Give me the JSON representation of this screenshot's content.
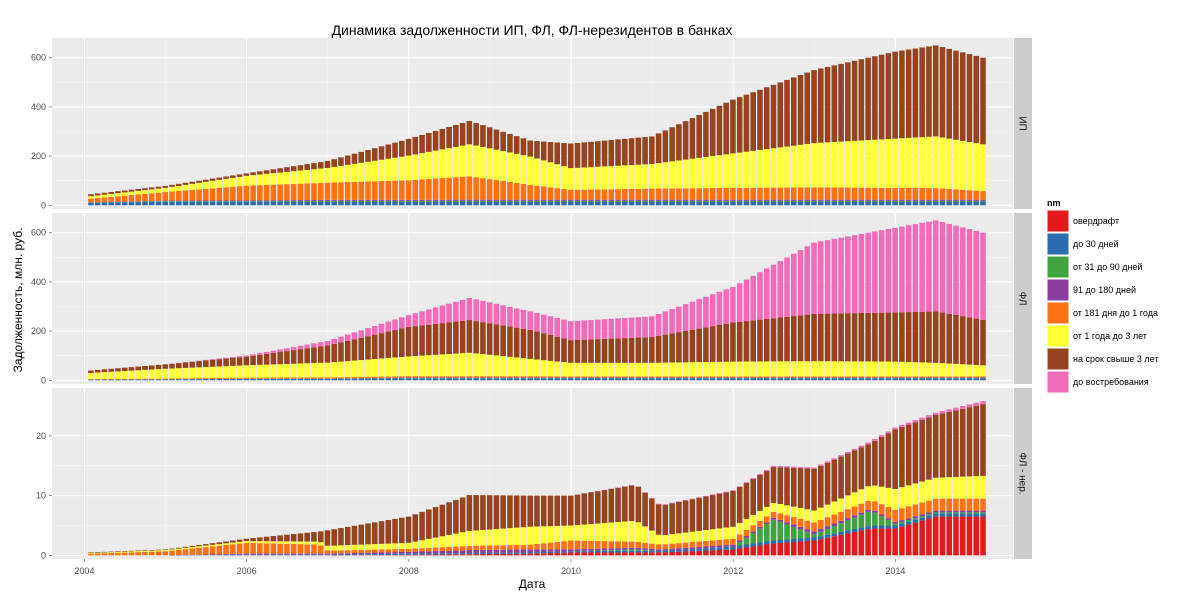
{
  "chart_data": {
    "type": "bar",
    "stacked": true,
    "title": "Динамика задолженности ИП, ФЛ, ФЛ-нерезидентов в банках",
    "xlabel": "Дата",
    "ylabel": "Задолженность, млн. руб.",
    "x_ticks": [
      "2004",
      "2006",
      "2008",
      "2010",
      "2012",
      "2014"
    ],
    "x_range": [
      2003.6,
      2015.45
    ],
    "grid": true,
    "legend": {
      "title": "nm",
      "position": "right",
      "entries": [
        {
          "name": "овердрафт",
          "color": "#e31a1c"
        },
        {
          "name": "до 30 дней",
          "color": "#2b6cb0"
        },
        {
          "name": "от 31 до 90 дней",
          "color": "#3fa33f"
        },
        {
          "name": "91 до 180 дней",
          "color": "#8a3ea0"
        },
        {
          "name": "от 181 дня до 1 года",
          "color": "#ff7214"
        },
        {
          "name": "от 1 года до 3 лет",
          "color": "#ffff33"
        },
        {
          "name": "на срок свыше 3 лет",
          "color": "#95441f"
        },
        {
          "name": "до востребования",
          "color": "#f06bb8"
        }
      ]
    },
    "panels": [
      {
        "strip": "ИП",
        "ylim": [
          -15,
          680
        ],
        "y_ticks": [
          0,
          200,
          400,
          600
        ],
        "anchors": [
          {
            "t": 2004.08,
            "v": [
              0,
              10,
              1,
              1,
              15,
              10,
              8,
              0
            ]
          },
          {
            "t": 2005.0,
            "v": [
              0,
              15,
              2,
              2,
              35,
              17,
              8,
              0
            ]
          },
          {
            "t": 2006.0,
            "v": [
              0,
              15,
              2,
              3,
              60,
              40,
              10,
              0
            ]
          },
          {
            "t": 2007.0,
            "v": [
              0,
              15,
              3,
              4,
              70,
              60,
              28,
              0
            ]
          },
          {
            "t": 2008.0,
            "v": [
              0,
              15,
              3,
              4,
              80,
              100,
              68,
              0
            ]
          },
          {
            "t": 2008.75,
            "v": [
              0,
              15,
              3,
              5,
              95,
              130,
              95,
              0
            ]
          },
          {
            "t": 2009.5,
            "v": [
              0,
              15,
              3,
              5,
              60,
              115,
              65,
              0
            ]
          },
          {
            "t": 2010.0,
            "v": [
              0,
              15,
              3,
              5,
              40,
              88,
              100,
              0
            ]
          },
          {
            "t": 2011.0,
            "v": [
              0,
              15,
              3,
              5,
              45,
              100,
              112,
              0
            ]
          },
          {
            "t": 2012.0,
            "v": [
              0,
              15,
              3,
              5,
              48,
              140,
              219,
              0
            ]
          },
          {
            "t": 2013.0,
            "v": [
              0,
              15,
              3,
              5,
              50,
              180,
              297,
              0
            ]
          },
          {
            "t": 2014.0,
            "v": [
              0,
              15,
              3,
              5,
              48,
              200,
              354,
              0
            ]
          },
          {
            "t": 2014.5,
            "v": [
              0,
              15,
              3,
              5,
              47,
              210,
              370,
              0
            ]
          },
          {
            "t": 2015.08,
            "v": [
              0,
              15,
              3,
              5,
              35,
              190,
              352,
              0
            ]
          }
        ]
      },
      {
        "strip": "ФЛ",
        "ylim": [
          -15,
          680
        ],
        "y_ticks": [
          0,
          200,
          400,
          600
        ],
        "anchors": [
          {
            "t": 2004.08,
            "v": [
              0,
              3,
              0,
              0,
              2,
              25,
              10,
              0
            ]
          },
          {
            "t": 2005.0,
            "v": [
              0,
              4,
              0,
              0,
              3,
              40,
              18,
              0
            ]
          },
          {
            "t": 2006.0,
            "v": [
              0,
              5,
              0,
              1,
              5,
              50,
              35,
              5
            ]
          },
          {
            "t": 2007.0,
            "v": [
              0,
              6,
              0,
              1,
              5,
              60,
              70,
              18
            ]
          },
          {
            "t": 2008.0,
            "v": [
              0,
              8,
              1,
              2,
              6,
              80,
              120,
              48
            ]
          },
          {
            "t": 2008.75,
            "v": [
              0,
              8,
              1,
              2,
              6,
              95,
              133,
              90
            ]
          },
          {
            "t": 2009.5,
            "v": [
              0,
              8,
              1,
              2,
              6,
              70,
              118,
              75
            ]
          },
          {
            "t": 2010.0,
            "v": [
              0,
              8,
              1,
              2,
              5,
              55,
              92,
              77
            ]
          },
          {
            "t": 2011.0,
            "v": [
              0,
              8,
              1,
              2,
              5,
              55,
              105,
              84
            ]
          },
          {
            "t": 2012.0,
            "v": [
              0,
              8,
              1,
              2,
              5,
              60,
              159,
              145
            ]
          },
          {
            "t": 2013.0,
            "v": [
              0,
              8,
              1,
              2,
              5,
              62,
              192,
              290
            ]
          },
          {
            "t": 2014.0,
            "v": [
              0,
              8,
              1,
              2,
              5,
              60,
              200,
              344
            ]
          },
          {
            "t": 2014.5,
            "v": [
              0,
              8,
              1,
              2,
              5,
              55,
              209,
              370
            ]
          },
          {
            "t": 2015.08,
            "v": [
              0,
              8,
              1,
              2,
              5,
              45,
              185,
              354
            ]
          }
        ]
      },
      {
        "strip": "ФЛ - нер.",
        "ylim": [
          -0.6,
          28
        ],
        "y_ticks": [
          0,
          10,
          20
        ],
        "anchors": [
          {
            "t": 2004.08,
            "v": [
              0,
              0,
              0,
              0,
              0.3,
              0.1,
              0.1,
              0
            ]
          },
          {
            "t": 2005.0,
            "v": [
              0,
              0,
              0,
              0,
              0.7,
              0.2,
              0.1,
              0
            ]
          },
          {
            "t": 2006.0,
            "v": [
              0,
              0.1,
              0,
              0.2,
              1.8,
              0.3,
              0.4,
              0
            ]
          },
          {
            "t": 2006.9,
            "v": [
              0,
              0.1,
              0,
              0.2,
              1.5,
              0.5,
              1.7,
              0
            ]
          },
          {
            "t": 2007.0,
            "v": [
              0,
              0.1,
              0,
              0.2,
              0.5,
              0.8,
              2.6,
              0
            ]
          },
          {
            "t": 2008.0,
            "v": [
              0.1,
              0.2,
              0,
              0.3,
              0.5,
              1.0,
              4.4,
              0
            ]
          },
          {
            "t": 2008.75,
            "v": [
              0.2,
              0.2,
              0,
              0.5,
              0.7,
              2.5,
              6.0,
              0
            ]
          },
          {
            "t": 2009.5,
            "v": [
              0.3,
              0.2,
              0,
              0.5,
              0.8,
              3.0,
              5.2,
              0
            ]
          },
          {
            "t": 2010.0,
            "v": [
              0.5,
              0.2,
              0,
              0.3,
              1.5,
              2.5,
              5.0,
              0
            ]
          },
          {
            "t": 2010.8,
            "v": [
              0.5,
              0.3,
              0.2,
              0.3,
              1.0,
              3.5,
              6.0,
              0.1
            ]
          },
          {
            "t": 2011.1,
            "v": [
              0.5,
              0.2,
              0,
              0.3,
              0.8,
              1.5,
              5.0,
              0.1
            ]
          },
          {
            "t": 2012.0,
            "v": [
              1.0,
              0.5,
              0,
              0.3,
              1.0,
              2.0,
              6.0,
              0.1
            ]
          },
          {
            "t": 2012.5,
            "v": [
              2.0,
              0.5,
              3.5,
              0.3,
              1.0,
              1.5,
              6.0,
              0.2
            ]
          },
          {
            "t": 2013.0,
            "v": [
              2.5,
              0.5,
              0.5,
              0.5,
              1.5,
              2.0,
              7.0,
              0.2
            ]
          },
          {
            "t": 2013.7,
            "v": [
              4.5,
              0.5,
              2.5,
              0.3,
              1.5,
              2.5,
              7.0,
              0.3
            ]
          },
          {
            "t": 2014.0,
            "v": [
              4.5,
              0.5,
              0.3,
              0.3,
              2.0,
              3.5,
              10.0,
              0.3
            ]
          },
          {
            "t": 2014.5,
            "v": [
              6.5,
              0.5,
              0.2,
              0.3,
              2.0,
              3.5,
              10.5,
              0.4
            ]
          },
          {
            "t": 2015.08,
            "v": [
              6.5,
              0.5,
              0.2,
              0.3,
              2.0,
              3.8,
              12.0,
              0.5
            ]
          }
        ]
      }
    ]
  }
}
